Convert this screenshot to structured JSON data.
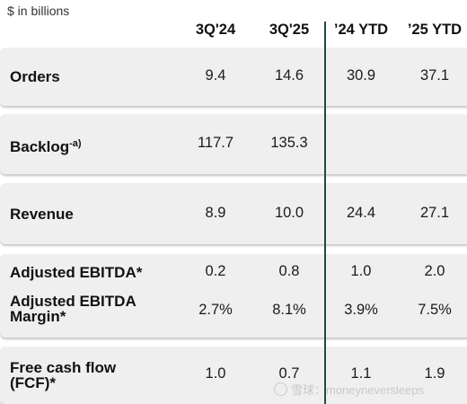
{
  "units": "$ in billions",
  "columns": [
    "3Q'24",
    "3Q'25",
    "’24 YTD",
    "’25 YTD"
  ],
  "rows": [
    {
      "label": "Orders",
      "values": [
        "9.4",
        "14.6",
        "30.9",
        "37.1"
      ]
    },
    {
      "label": "Backlog",
      "sup": "-a)",
      "values": [
        "117.7",
        "135.3",
        "",
        ""
      ]
    },
    {
      "label": "Revenue",
      "values": [
        "8.9",
        "10.0",
        "24.4",
        "27.1"
      ]
    },
    {
      "label": "Adjusted EBITDA*",
      "values": [
        "0.2",
        "0.8",
        "1.0",
        "2.0"
      ]
    },
    {
      "label": "Adjusted EBITDA",
      "label_line2": "Margin*",
      "values": [
        "2.7%",
        "8.1%",
        "3.9%",
        "7.5%"
      ]
    },
    {
      "label": "Free cash flow",
      "label_line2": "(FCF)*",
      "values": [
        "1.0",
        "0.7",
        "1.1",
        "1.9"
      ]
    }
  ],
  "watermark": "雪球：moneyneversleeps",
  "colors": {
    "block_bg": "#efefef",
    "divider": "#1f4a47"
  }
}
